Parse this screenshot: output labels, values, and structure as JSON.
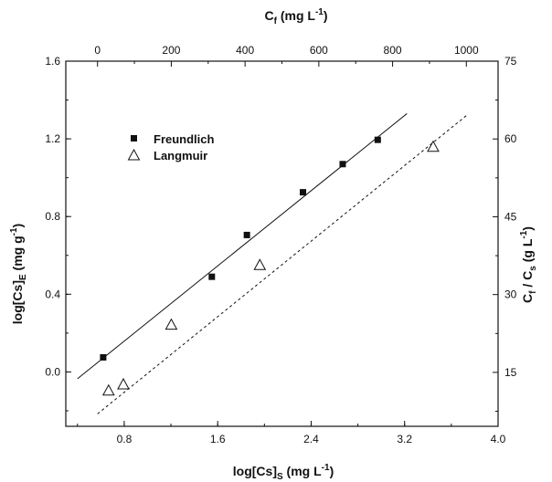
{
  "chart_data": {
    "type": "scatter",
    "axes": {
      "bottom": {
        "label": "log[Cs]",
        "label_sub": "S",
        "label_unit": "(mg L",
        "label_sup": "-1",
        "label_end": ")",
        "range": [
          0.3,
          4.0
        ],
        "ticks": [
          0.8,
          1.6,
          2.4,
          3.2,
          4.0
        ],
        "tick_labels": [
          "0.8",
          "1.6",
          "2.4",
          "3.2",
          "4.0"
        ]
      },
      "left": {
        "label": "log[Cs]",
        "label_sub": "E",
        "label_unit": "(mg g",
        "label_sup": "-1",
        "label_end": ")",
        "range": [
          -0.28,
          1.6
        ],
        "ticks": [
          0.0,
          0.4,
          0.8,
          1.2,
          1.6
        ],
        "tick_labels": [
          "0.0",
          "0.4",
          "0.8",
          "1.2",
          "1.6"
        ]
      },
      "top": {
        "label": "C",
        "label_sub": "f",
        "label_unit": "(mg L",
        "label_sup": "-1",
        "label_end": ")",
        "range": [
          -86,
          1086
        ],
        "ticks": [
          0,
          200,
          400,
          600,
          800,
          1000
        ],
        "tick_labels": [
          "0",
          "200",
          "400",
          "600",
          "800",
          "1000"
        ]
      },
      "right": {
        "label": "C",
        "label_sub": "f",
        "label_mid": " / C",
        "label_sub2": "s",
        "label_unit": " (g L",
        "label_sup": "-1",
        "label_end": ")",
        "range": [
          4.6,
          75
        ],
        "ticks": [
          15,
          30,
          45,
          60,
          75
        ],
        "tick_labels": [
          "15",
          "30",
          "45",
          "60",
          "75"
        ]
      }
    },
    "series": [
      {
        "name": "Freundlich",
        "marker": "filled-square",
        "axes": "bottom-left",
        "points": [
          [
            0.62,
            0.075
          ],
          [
            1.55,
            0.49
          ],
          [
            1.85,
            0.705
          ],
          [
            2.33,
            0.925
          ],
          [
            2.67,
            1.07
          ],
          [
            2.97,
            1.195
          ]
        ],
        "fit": {
          "style": "solid",
          "x": [
            0.4,
            3.22
          ],
          "y": [
            -0.035,
            1.33
          ]
        }
      },
      {
        "name": "Langmuir",
        "marker": "open-triangle",
        "axes": "top-right",
        "points": [
          [
            30,
            11.5
          ],
          [
            70,
            12.7
          ],
          [
            200,
            24.2
          ],
          [
            440,
            35.7
          ],
          [
            910,
            58.5
          ]
        ],
        "fit": {
          "style": "dashed",
          "x": [
            0,
            1000
          ],
          "y": [
            7.0,
            64.5
          ]
        }
      }
    ],
    "legend": {
      "placement": "top-left"
    },
    "grid": false
  }
}
